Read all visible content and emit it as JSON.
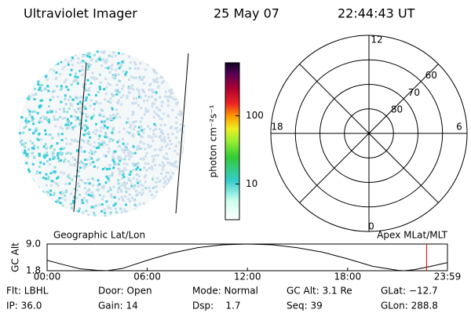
{
  "header": {
    "instrument": "Ultraviolet Imager",
    "date": "25 May 07",
    "time": "22:44:43 UT"
  },
  "colorbar": {
    "label": "photon cm⁻²s⁻¹",
    "log": true,
    "lim": [
      3,
      600
    ],
    "ticks": [
      10,
      100
    ]
  },
  "polar": {
    "hour_labels": [
      "12",
      "18",
      "6",
      "0"
    ],
    "lat_lim": [
      50,
      90
    ],
    "lat_rings": [
      60,
      70,
      80
    ]
  },
  "timeline": {
    "left_label": "Geographic Lat/Lon",
    "right_label": "Apex MLat/MLT",
    "y_label": "GC Alt",
    "ylim": [
      1.8,
      9.0
    ],
    "yticks": [
      {
        "value": 9.0,
        "label": "9.0"
      },
      {
        "value": 1.8,
        "label": "1.8"
      }
    ],
    "xlim": [
      0,
      23.98
    ],
    "xticks": [
      {
        "value": 0,
        "label": "00:00"
      },
      {
        "value": 6,
        "label": "06:00"
      },
      {
        "value": 12,
        "label": "12:00"
      },
      {
        "value": 18,
        "label": "18:00"
      },
      {
        "value": 23.98,
        "label": "23:59"
      }
    ],
    "x": [
      0,
      1,
      2,
      3,
      3.6,
      4.5,
      6,
      7.5,
      9,
      10.5,
      12,
      13.5,
      15,
      16.5,
      18,
      19.5,
      21,
      21.4,
      22,
      23,
      23.98
    ],
    "altitude": [
      4.6,
      3.4,
      2.3,
      1.9,
      1.8,
      2.4,
      4.6,
      6.6,
      8.0,
      8.8,
      9.0,
      8.8,
      8.0,
      6.8,
      5.0,
      3.0,
      1.9,
      1.8,
      2.1,
      3.0,
      4.0
    ],
    "current_time": 22.73
  },
  "footer": {
    "rows": [
      [
        "Flt: LBHL",
        "Door: Open",
        "Mode: Normal",
        "GC Alt: 3.1 Re",
        "GLat: −12.7"
      ],
      [
        "IP: 36.0",
        "Gain: 14",
        "Dsp:    1.7",
        "Seq: 39",
        "GLon: 288.8"
      ]
    ]
  }
}
